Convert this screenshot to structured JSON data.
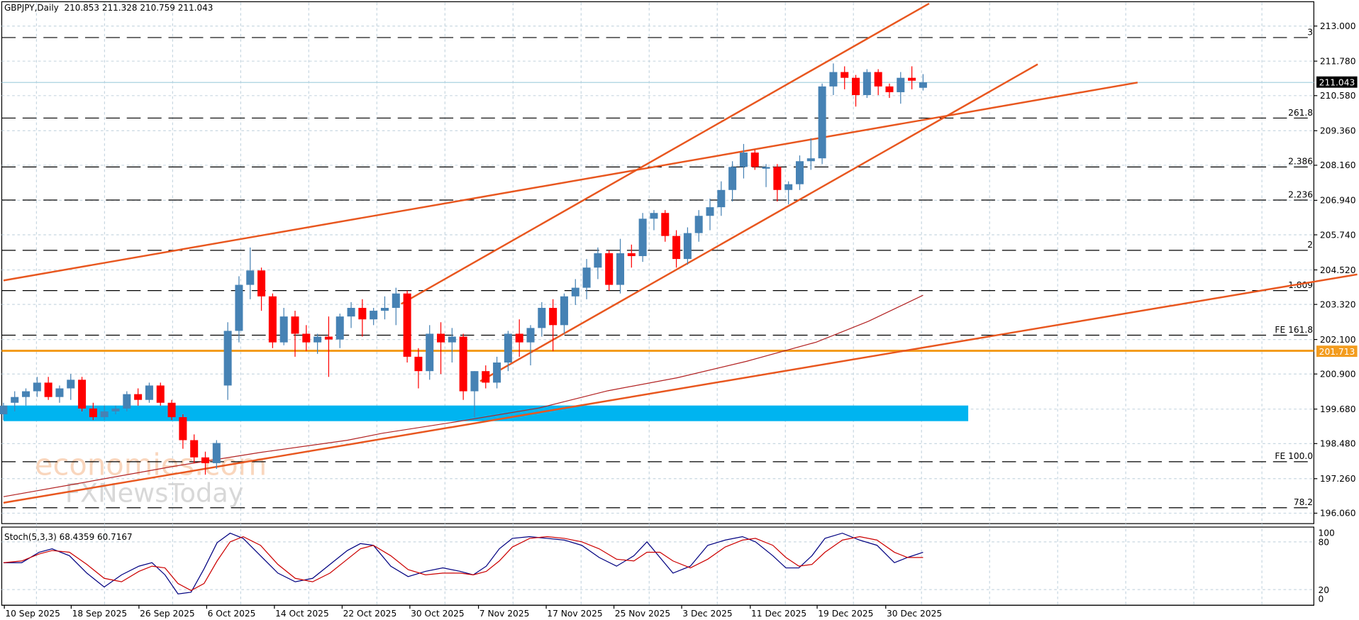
{
  "header": {
    "symbol_timeframe": "GBPJPY,Daily",
    "ohlc": "210.853 211.328 210.759 211.043"
  },
  "stoch": {
    "label": "Stoch(5,3,3) 68.4359 60.7167",
    "levels": [
      "100",
      "80",
      "20",
      "0"
    ]
  },
  "price_axis": {
    "ticks": [
      "213.000",
      "211.780",
      "210.580",
      "209.360",
      "208.160",
      "206.940",
      "205.740",
      "204.520",
      "203.320",
      "202.100",
      "200.900",
      "199.680",
      "198.480",
      "197.260",
      "196.060"
    ],
    "current_price": "211.043",
    "current_price_color": "#000000",
    "level_price": "201.713",
    "level_color": "#f39c1e"
  },
  "date_axis": {
    "ticks": [
      "10 Sep 2025",
      "18 Sep 2025",
      "26 Sep 2025",
      "6 Oct 2025",
      "14 Oct 2025",
      "22 Oct 2025",
      "30 Oct 2025",
      "7 Nov 2025",
      "17 Nov 2025",
      "25 Nov 2025",
      "3 Dec 2025",
      "11 Dec 2025",
      "19 Dec 2025",
      "30 Dec 2025"
    ]
  },
  "fib_levels": [
    {
      "label": "3",
      "price": 212.6
    },
    {
      "label": "261.8",
      "price": 209.8
    },
    {
      "label": "2.386",
      "price": 208.1
    },
    {
      "label": "2.236",
      "price": 206.95
    },
    {
      "label": "2",
      "price": 205.2
    },
    {
      "label": "1.809",
      "price": 203.8
    },
    {
      "label": "FE 161.8",
      "price": 202.25
    },
    {
      "label": "FE 100.0",
      "price": 197.85
    },
    {
      "label": "78.2",
      "price": 196.25
    }
  ],
  "watermark": {
    "line1": "economies.com",
    "line2": "FXNewsToday"
  },
  "colors": {
    "bull": "#4682b4",
    "bear": "#ff0000",
    "trendline": "#e8561e",
    "zone": "#00b4f0",
    "ma": "#b22222",
    "stoch_main": "#000080",
    "stoch_signal": "#cc0000",
    "grid": "#c8d7e1"
  },
  "chart_data": {
    "type": "candlestick",
    "title": "GBPJPY, Daily",
    "ylim": [
      195.6,
      213.9
    ],
    "last_ohlc": {
      "open": 210.853,
      "high": 211.328,
      "low": 210.759,
      "close": 211.043
    },
    "support_zone": [
      199.35,
      199.85
    ],
    "horizontal_level": 201.713,
    "candles_approx": [
      [
        199.5,
        199.9,
        199.3,
        199.8
      ],
      [
        199.9,
        200.3,
        199.6,
        200.1
      ],
      [
        200.1,
        200.4,
        199.8,
        200.3
      ],
      [
        200.3,
        200.8,
        200.1,
        200.6
      ],
      [
        200.6,
        200.8,
        200.0,
        200.1
      ],
      [
        200.1,
        200.5,
        199.9,
        200.4
      ],
      [
        200.4,
        200.9,
        200.0,
        200.7
      ],
      [
        200.7,
        200.8,
        199.6,
        199.7
      ],
      [
        199.7,
        199.9,
        199.3,
        199.4
      ],
      [
        199.4,
        199.8,
        199.3,
        199.6
      ],
      [
        199.6,
        199.8,
        199.5,
        199.7
      ],
      [
        199.7,
        200.3,
        199.6,
        200.2
      ],
      [
        200.2,
        200.4,
        199.8,
        200.0
      ],
      [
        200.0,
        200.6,
        199.9,
        200.5
      ],
      [
        200.5,
        200.6,
        199.8,
        199.9
      ],
      [
        199.9,
        200.0,
        199.3,
        199.4
      ],
      [
        199.4,
        199.5,
        198.3,
        198.6
      ],
      [
        198.6,
        198.8,
        197.8,
        198.0
      ],
      [
        198.0,
        198.2,
        197.4,
        197.8
      ],
      [
        197.8,
        198.6,
        197.6,
        198.5
      ],
      [
        200.5,
        202.7,
        200.0,
        202.4
      ],
      [
        202.4,
        204.3,
        202.0,
        204.0
      ],
      [
        204.0,
        205.3,
        203.5,
        204.5
      ],
      [
        204.5,
        204.6,
        203.1,
        203.6
      ],
      [
        203.6,
        203.7,
        201.8,
        202.0
      ],
      [
        202.0,
        203.2,
        201.9,
        202.9
      ],
      [
        202.9,
        203.1,
        201.5,
        202.3
      ],
      [
        202.3,
        202.6,
        201.7,
        202.0
      ],
      [
        202.0,
        202.3,
        201.6,
        202.2
      ],
      [
        202.2,
        202.9,
        200.8,
        202.1
      ],
      [
        202.1,
        203.0,
        201.8,
        202.9
      ],
      [
        202.9,
        203.4,
        202.5,
        203.2
      ],
      [
        203.2,
        203.5,
        202.2,
        202.8
      ],
      [
        202.8,
        203.2,
        202.6,
        203.1
      ],
      [
        203.1,
        203.6,
        202.8,
        203.2
      ],
      [
        203.2,
        203.9,
        202.6,
        203.7
      ],
      [
        203.7,
        203.8,
        201.3,
        201.5
      ],
      [
        201.5,
        201.8,
        200.4,
        201.0
      ],
      [
        201.0,
        202.6,
        200.7,
        202.3
      ],
      [
        202.3,
        202.7,
        200.9,
        202.0
      ],
      [
        202.0,
        202.5,
        201.3,
        202.2
      ],
      [
        202.2,
        202.3,
        200.0,
        200.3
      ],
      [
        200.3,
        201.0,
        199.4,
        201.0
      ],
      [
        201.0,
        201.2,
        200.4,
        200.6
      ],
      [
        200.6,
        201.5,
        200.4,
        201.3
      ],
      [
        201.3,
        202.4,
        201.0,
        202.3
      ],
      [
        202.3,
        202.8,
        201.5,
        202.0
      ],
      [
        202.0,
        202.6,
        201.2,
        202.5
      ],
      [
        202.5,
        203.4,
        202.2,
        203.2
      ],
      [
        203.2,
        203.5,
        201.7,
        202.6
      ],
      [
        202.6,
        203.7,
        202.3,
        203.6
      ],
      [
        203.6,
        204.2,
        203.3,
        203.9
      ],
      [
        203.9,
        204.9,
        203.5,
        204.6
      ],
      [
        204.6,
        205.3,
        204.2,
        205.1
      ],
      [
        205.1,
        205.2,
        203.8,
        204.0
      ],
      [
        204.0,
        205.6,
        203.7,
        205.1
      ],
      [
        205.1,
        205.4,
        204.6,
        205.0
      ],
      [
        205.0,
        206.5,
        204.8,
        206.3
      ],
      [
        206.3,
        206.6,
        205.9,
        206.5
      ],
      [
        206.5,
        206.6,
        205.5,
        205.7
      ],
      [
        205.7,
        205.9,
        204.6,
        204.9
      ],
      [
        204.9,
        206.0,
        204.7,
        205.8
      ],
      [
        205.8,
        206.6,
        205.5,
        206.4
      ],
      [
        206.4,
        207.0,
        205.9,
        206.7
      ],
      [
        206.7,
        207.6,
        206.4,
        207.3
      ],
      [
        207.3,
        208.3,
        206.9,
        208.1
      ],
      [
        208.1,
        208.9,
        207.7,
        208.6
      ],
      [
        208.6,
        208.7,
        208.0,
        208.1
      ],
      [
        208.1,
        208.2,
        207.4,
        208.1
      ],
      [
        208.1,
        208.2,
        206.9,
        207.3
      ],
      [
        207.3,
        207.6,
        206.8,
        207.5
      ],
      [
        207.5,
        208.5,
        207.3,
        208.3
      ],
      [
        208.3,
        209.1,
        208.0,
        208.4
      ],
      [
        208.4,
        211.0,
        208.2,
        210.9
      ],
      [
        210.9,
        211.7,
        210.6,
        211.4
      ],
      [
        211.4,
        211.6,
        210.8,
        211.2
      ],
      [
        211.2,
        211.3,
        210.2,
        210.6
      ],
      [
        210.6,
        211.5,
        210.5,
        211.4
      ],
      [
        211.4,
        211.5,
        210.6,
        210.9
      ],
      [
        210.9,
        211.0,
        210.5,
        210.7
      ],
      [
        210.7,
        211.4,
        210.3,
        211.2
      ],
      [
        211.2,
        211.6,
        210.8,
        211.1
      ],
      [
        210.853,
        211.328,
        210.759,
        211.043
      ]
    ],
    "indicator": {
      "name": "Stoch(5,3,3)",
      "main": 68.4359,
      "signal": 60.7167,
      "levels": [
        20,
        80
      ],
      "ylim": [
        0,
        100
      ]
    }
  }
}
